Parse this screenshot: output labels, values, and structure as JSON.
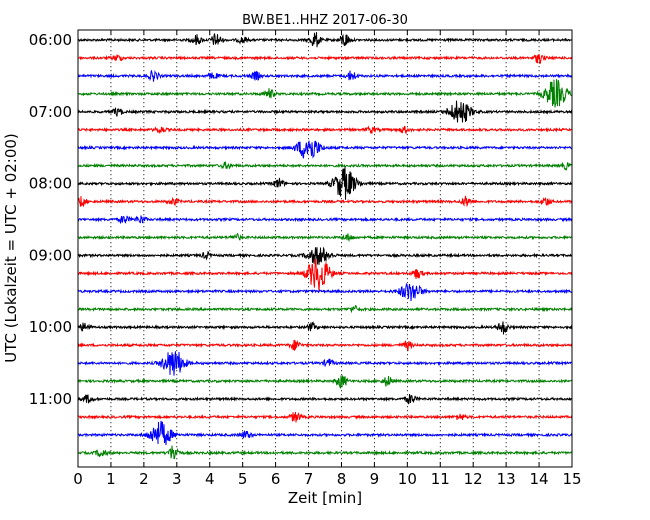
{
  "chart_data": {
    "type": "line",
    "title": "BW.BE1..HHZ 2017-06-30",
    "xlabel": "Zeit  [min]",
    "ylabel": "UTC (Lokalzeit = UTC + 02:00)",
    "xlim": [
      0,
      15
    ],
    "x_ticks": [
      "0",
      "1",
      "2",
      "3",
      "4",
      "5",
      "6",
      "7",
      "8",
      "9",
      "10",
      "11",
      "12",
      "13",
      "14",
      "15"
    ],
    "y_tick_labels": [
      "06:00",
      "07:00",
      "08:00",
      "09:00",
      "10:00",
      "11:00"
    ],
    "grid": true,
    "trace_colors": [
      "#000000",
      "#ff0000",
      "#0000ff",
      "#008000"
    ],
    "traces": [
      {
        "start": "06:00",
        "events": [
          [
            3.6,
            5
          ],
          [
            4.2,
            7
          ],
          [
            5.0,
            3
          ],
          [
            7.2,
            8
          ],
          [
            8.1,
            7
          ]
        ]
      },
      {
        "start": "06:15",
        "events": [
          [
            1.2,
            3
          ],
          [
            14.0,
            5
          ]
        ]
      },
      {
        "start": "06:30",
        "events": [
          [
            2.3,
            5
          ],
          [
            4.1,
            3
          ],
          [
            5.4,
            4
          ],
          [
            8.3,
            5
          ]
        ]
      },
      {
        "start": "06:45",
        "events": [
          [
            5.8,
            5
          ],
          [
            14.5,
            14
          ]
        ]
      },
      {
        "start": "07:00",
        "events": [
          [
            1.2,
            4
          ],
          [
            11.6,
            12
          ]
        ]
      },
      {
        "start": "07:15",
        "events": [
          [
            2.5,
            3
          ],
          [
            8.9,
            3
          ],
          [
            9.9,
            3
          ]
        ]
      },
      {
        "start": "07:30",
        "events": [
          [
            7.0,
            13
          ]
        ]
      },
      {
        "start": "07:45",
        "events": [
          [
            4.5,
            3
          ],
          [
            14.8,
            3
          ]
        ]
      },
      {
        "start": "08:00",
        "events": [
          [
            6.1,
            5
          ],
          [
            8.1,
            16
          ]
        ]
      },
      {
        "start": "08:15",
        "events": [
          [
            0.1,
            5
          ],
          [
            2.9,
            3
          ],
          [
            11.8,
            5
          ],
          [
            14.2,
            4
          ]
        ]
      },
      {
        "start": "08:30",
        "events": [
          [
            1.4,
            4
          ],
          [
            1.9,
            4
          ]
        ]
      },
      {
        "start": "08:45",
        "events": [
          [
            4.8,
            3
          ],
          [
            8.2,
            3
          ]
        ]
      },
      {
        "start": "09:00",
        "events": [
          [
            3.9,
            3
          ],
          [
            7.3,
            9
          ]
        ]
      },
      {
        "start": "09:15",
        "events": [
          [
            7.3,
            18
          ],
          [
            10.3,
            5
          ]
        ]
      },
      {
        "start": "09:30",
        "events": [
          [
            10.1,
            9
          ]
        ]
      },
      {
        "start": "09:45",
        "events": [
          [
            8.4,
            3
          ]
        ]
      },
      {
        "start": "10:00",
        "events": [
          [
            0.2,
            4
          ],
          [
            7.1,
            4
          ],
          [
            12.9,
            7
          ]
        ]
      },
      {
        "start": "10:15",
        "events": [
          [
            6.6,
            5
          ],
          [
            10.0,
            4
          ]
        ]
      },
      {
        "start": "10:30",
        "events": [
          [
            2.9,
            14
          ],
          [
            7.6,
            4
          ]
        ]
      },
      {
        "start": "10:45",
        "events": [
          [
            8.0,
            7
          ],
          [
            9.4,
            5
          ]
        ]
      },
      {
        "start": "11:00",
        "events": [
          [
            0.3,
            4
          ],
          [
            10.1,
            5
          ]
        ]
      },
      {
        "start": "11:15",
        "events": [
          [
            6.6,
            5
          ],
          [
            11.6,
            3
          ]
        ]
      },
      {
        "start": "11:30",
        "events": [
          [
            2.5,
            13
          ],
          [
            5.1,
            4
          ]
        ]
      },
      {
        "start": "11:45",
        "events": [
          [
            0.7,
            4
          ],
          [
            2.9,
            8
          ]
        ]
      }
    ]
  }
}
